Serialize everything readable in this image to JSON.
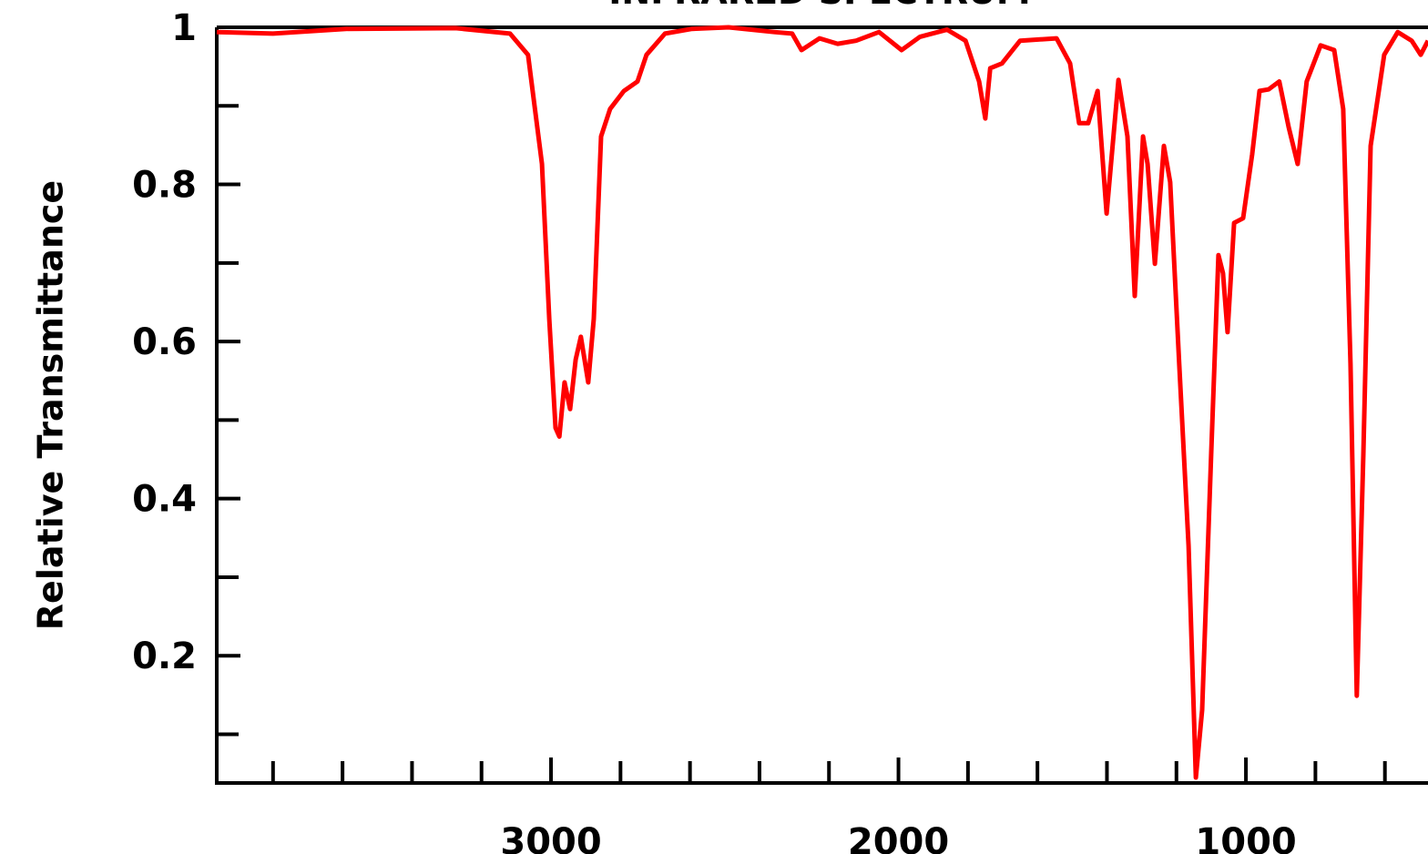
{
  "chart_data": {
    "type": "line",
    "title": "INFRARED SPECTRUM",
    "ylabel": "Relative Transmittance",
    "x": [
      3962,
      3800,
      3590,
      3275,
      3118,
      3066,
      3026,
      3005,
      2987,
      2976,
      2961,
      2945,
      2929,
      2914,
      2893,
      2877,
      2856,
      2830,
      2790,
      2751,
      2725,
      2672,
      2594,
      2489,
      2358,
      2306,
      2279,
      2227,
      2175,
      2122,
      2056,
      1991,
      1938,
      1860,
      1807,
      1768,
      1750,
      1736,
      1702,
      1650,
      1545,
      1506,
      1480,
      1454,
      1427,
      1401,
      1367,
      1341,
      1320,
      1296,
      1283,
      1262,
      1236,
      1218,
      1192,
      1165,
      1144,
      1126,
      1100,
      1079,
      1066,
      1053,
      1034,
      1008,
      982,
      961,
      935,
      904,
      877,
      851,
      825,
      785,
      746,
      720,
      699,
      681,
      662,
      641,
      602,
      563,
      523,
      497,
      476
    ],
    "series": [
      {
        "color": "#ff0000",
        "values": [
          0.994,
          0.992,
          0.998,
          0.999,
          0.992,
          0.965,
          0.826,
          0.629,
          0.49,
          0.479,
          0.548,
          0.514,
          0.577,
          0.606,
          0.548,
          0.629,
          0.861,
          0.896,
          0.919,
          0.931,
          0.965,
          0.992,
          0.998,
          1.0,
          0.994,
          0.992,
          0.971,
          0.986,
          0.979,
          0.983,
          0.994,
          0.971,
          0.988,
          0.997,
          0.983,
          0.931,
          0.884,
          0.948,
          0.954,
          0.983,
          0.986,
          0.954,
          0.878,
          0.878,
          0.919,
          0.763,
          0.933,
          0.861,
          0.658,
          0.861,
          0.826,
          0.699,
          0.849,
          0.803,
          0.572,
          0.34,
          0.045,
          0.131,
          0.456,
          0.71,
          0.687,
          0.612,
          0.751,
          0.757,
          0.838,
          0.919,
          0.921,
          0.931,
          0.873,
          0.826,
          0.931,
          0.977,
          0.971,
          0.896,
          0.572,
          0.149,
          0.456,
          0.849,
          0.965,
          0.994,
          0.983,
          0.965,
          0.983
        ]
      }
    ],
    "xlim": [
      3962,
      476
    ],
    "xticks": [
      3000,
      2000,
      1000
    ],
    "xminorticks": [
      3800,
      3600,
      3400,
      3200,
      2800,
      2600,
      2400,
      2200,
      1800,
      1600,
      1400,
      1200,
      800,
      600
    ],
    "ylim": [
      0.038,
      1
    ],
    "yticks": [
      0.2,
      0.4,
      0.6,
      0.8,
      1
    ],
    "yminorticks": [
      0.1,
      0.3,
      0.5,
      0.7,
      0.9
    ]
  }
}
